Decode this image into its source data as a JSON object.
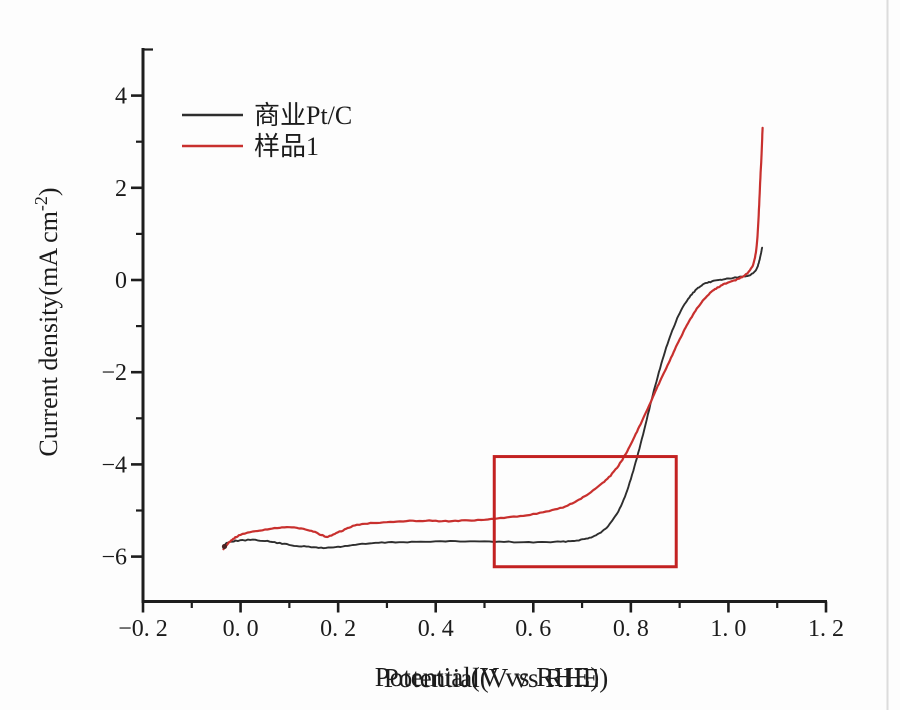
{
  "page": {
    "background": "#fdfdfd",
    "edge_line_color": "#dcdcdc",
    "text_color": "#1c1c1c",
    "axis_color": "#1d1d1d"
  },
  "chart_data": {
    "type": "line",
    "title": "",
    "xlabel": "Potential(V vs RHE)",
    "xlabel_printed_twice": true,
    "ylabel_main": "Current density(mA cm",
    "ylabel_sup": "-2",
    "ylabel_end": ")",
    "xlim": [
      -0.2,
      1.2
    ],
    "ylim": [
      -6.97,
      5.05
    ],
    "grid": false,
    "legend_position": "upper-left",
    "x_axis": {
      "major_ticks": [
        -0.2,
        0.0,
        0.2,
        0.4,
        0.6,
        0.8,
        1.0,
        1.2
      ],
      "major_labels": [
        "−0. 2",
        "0. 0",
        "0. 2",
        "0. 4",
        "0. 6",
        "0. 8",
        "1. 0",
        "1. 2"
      ],
      "minor_ticks": [
        -0.1,
        0.1,
        0.3,
        0.5,
        0.7,
        0.9,
        1.1
      ]
    },
    "y_axis": {
      "major_ticks": [
        4,
        2,
        0,
        -2,
        -4,
        -6
      ],
      "major_labels": [
        "4",
        "2",
        "0",
        "−2",
        "−4",
        "−6"
      ],
      "minor_ticks": [
        3,
        1,
        -1,
        -3,
        -5
      ],
      "minor_ticks_inward": [
        5
      ]
    },
    "series": [
      {
        "name": "商业Pt/C",
        "color": "#2e2e2e",
        "width": 1.9,
        "points": [
          [
            -0.035,
            -5.82
          ],
          [
            -0.028,
            -5.7
          ],
          [
            -0.01,
            -5.66
          ],
          [
            0.02,
            -5.64
          ],
          [
            0.05,
            -5.66
          ],
          [
            0.08,
            -5.71
          ],
          [
            0.11,
            -5.76
          ],
          [
            0.14,
            -5.79
          ],
          [
            0.17,
            -5.81
          ],
          [
            0.2,
            -5.79
          ],
          [
            0.23,
            -5.75
          ],
          [
            0.27,
            -5.71
          ],
          [
            0.31,
            -5.69
          ],
          [
            0.36,
            -5.68
          ],
          [
            0.42,
            -5.67
          ],
          [
            0.48,
            -5.67
          ],
          [
            0.54,
            -5.68
          ],
          [
            0.6,
            -5.69
          ],
          [
            0.65,
            -5.68
          ],
          [
            0.68,
            -5.66
          ],
          [
            0.705,
            -5.62
          ],
          [
            0.725,
            -5.55
          ],
          [
            0.745,
            -5.42
          ],
          [
            0.762,
            -5.22
          ],
          [
            0.78,
            -4.9
          ],
          [
            0.795,
            -4.48
          ],
          [
            0.81,
            -3.95
          ],
          [
            0.825,
            -3.35
          ],
          [
            0.84,
            -2.7
          ],
          [
            0.855,
            -2.1
          ],
          [
            0.87,
            -1.55
          ],
          [
            0.885,
            -1.1
          ],
          [
            0.9,
            -0.72
          ],
          [
            0.915,
            -0.45
          ],
          [
            0.93,
            -0.25
          ],
          [
            0.945,
            -0.12
          ],
          [
            0.96,
            -0.05
          ],
          [
            0.98,
            0.0
          ],
          [
            1.0,
            0.03
          ],
          [
            1.02,
            0.06
          ],
          [
            1.035,
            0.08
          ],
          [
            1.048,
            0.13
          ],
          [
            1.058,
            0.25
          ],
          [
            1.064,
            0.45
          ],
          [
            1.069,
            0.7
          ]
        ]
      },
      {
        "name": "样品1",
        "color": "#c8302e",
        "width": 2.2,
        "points": [
          [
            -0.035,
            -5.84
          ],
          [
            -0.028,
            -5.74
          ],
          [
            -0.015,
            -5.62
          ],
          [
            0.0,
            -5.53
          ],
          [
            0.03,
            -5.45
          ],
          [
            0.06,
            -5.4
          ],
          [
            0.09,
            -5.37
          ],
          [
            0.12,
            -5.38
          ],
          [
            0.145,
            -5.44
          ],
          [
            0.165,
            -5.53
          ],
          [
            0.178,
            -5.57
          ],
          [
            0.19,
            -5.52
          ],
          [
            0.21,
            -5.43
          ],
          [
            0.23,
            -5.34
          ],
          [
            0.26,
            -5.28
          ],
          [
            0.3,
            -5.25
          ],
          [
            0.34,
            -5.23
          ],
          [
            0.38,
            -5.22
          ],
          [
            0.42,
            -5.23
          ],
          [
            0.46,
            -5.22
          ],
          [
            0.5,
            -5.2
          ],
          [
            0.54,
            -5.16
          ],
          [
            0.58,
            -5.11
          ],
          [
            0.62,
            -5.04
          ],
          [
            0.655,
            -4.95
          ],
          [
            0.685,
            -4.82
          ],
          [
            0.71,
            -4.66
          ],
          [
            0.735,
            -4.47
          ],
          [
            0.755,
            -4.28
          ],
          [
            0.775,
            -4.02
          ],
          [
            0.79,
            -3.76
          ],
          [
            0.805,
            -3.45
          ],
          [
            0.82,
            -3.12
          ],
          [
            0.835,
            -2.78
          ],
          [
            0.85,
            -2.42
          ],
          [
            0.865,
            -2.08
          ],
          [
            0.88,
            -1.74
          ],
          [
            0.895,
            -1.4
          ],
          [
            0.91,
            -1.08
          ],
          [
            0.925,
            -0.8
          ],
          [
            0.94,
            -0.55
          ],
          [
            0.955,
            -0.36
          ],
          [
            0.97,
            -0.22
          ],
          [
            0.985,
            -0.12
          ],
          [
            1.0,
            -0.05
          ],
          [
            1.015,
            0.0
          ],
          [
            1.03,
            0.08
          ],
          [
            1.042,
            0.18
          ],
          [
            1.052,
            0.38
          ],
          [
            1.058,
            0.75
          ],
          [
            1.062,
            1.4
          ],
          [
            1.065,
            2.1
          ],
          [
            1.068,
            2.75
          ],
          [
            1.07,
            3.3
          ]
        ]
      }
    ],
    "legend": {
      "entries": [
        {
          "label": "商业Pt/C",
          "color": "#2e2e2e"
        },
        {
          "label": "样品1",
          "color": "#c8302e"
        }
      ]
    },
    "annotation_rect": {
      "x0": 0.52,
      "x1": 0.893,
      "y_top": -3.83,
      "y_bottom": -6.22,
      "color": "#c32222",
      "stroke_width": 3
    }
  }
}
